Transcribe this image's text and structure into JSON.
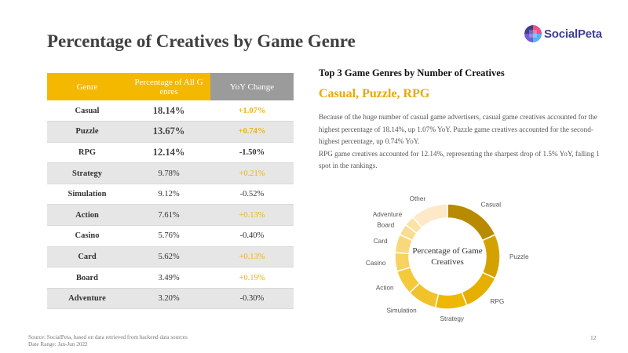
{
  "slide": {
    "title": "Percentage of Creatives by Game Genre",
    "page_number": "12"
  },
  "logo": {
    "text": "SocialPeta",
    "text_color": "#3d3f8f"
  },
  "table": {
    "headers": [
      "Genre",
      "Percentage of All G enres",
      "YoY Change"
    ],
    "header_colors": [
      "#f5b800",
      "#f5b800",
      "#9b9b9b"
    ],
    "rows": [
      {
        "genre": "Casual",
        "percent": "18.14%",
        "yoy": "+1.07%",
        "positive": true
      },
      {
        "genre": "Puzzle",
        "percent": "13.67%",
        "yoy": "+0.74%",
        "positive": true
      },
      {
        "genre": "RPG",
        "percent": "12.14%",
        "yoy": "-1.50%",
        "positive": false
      },
      {
        "genre": "Strategy",
        "percent": "9.78%",
        "yoy": "+0.21%",
        "positive": true
      },
      {
        "genre": "Simulation",
        "percent": "9.12%",
        "yoy": "-0.52%",
        "positive": false
      },
      {
        "genre": "Action",
        "percent": "7.61%",
        "yoy": "+0.13%",
        "positive": true
      },
      {
        "genre": "Casino",
        "percent": "5.76%",
        "yoy": "-0.40%",
        "positive": false
      },
      {
        "genre": "Card",
        "percent": "5.62%",
        "yoy": "+0.13%",
        "positive": true
      },
      {
        "genre": "Board",
        "percent": "3.49%",
        "yoy": "+0.19%",
        "positive": true
      },
      {
        "genre": "Adventure",
        "percent": "3.20%",
        "yoy": "-0.30%",
        "positive": false
      }
    ]
  },
  "panel": {
    "subtitle": "Top 3 Game Genres by Number of Creatives",
    "highlight": "Casual, Puzzle, RPG",
    "highlight_color": "#e8a800",
    "paragraphs": [
      "Because of the huge number of casual game advertisers, casual game creatives accounted for the highest percentage of 18.14%, up 1.07% YoY. Puzzle game creatives accounted for the second-highest percentage, up 0.74% YoY.",
      "RPG game creatives accounted for 12.14%, representing the sharpest drop of 1.5% YoY, falling 1 spot in the rankings."
    ]
  },
  "chart_data": {
    "type": "pie",
    "donut": true,
    "title": "Percentage of Game Creatives",
    "categories": [
      "Casual",
      "Puzzle",
      "RPG",
      "Strategy",
      "Simulation",
      "Action",
      "Casino",
      "Card",
      "Board",
      "Adventure",
      "Other"
    ],
    "values": [
      18.14,
      13.67,
      12.14,
      9.78,
      9.12,
      7.61,
      5.76,
      5.62,
      3.49,
      3.2,
      11.47
    ],
    "colors": [
      "#b88a00",
      "#d4a200",
      "#e6af00",
      "#eeb800",
      "#f2c22c",
      "#f5c93c",
      "#f7d261",
      "#f8d87a",
      "#fadd90",
      "#fbe3a4",
      "#fde9c8"
    ]
  },
  "footer": {
    "source": "Source: SocialPeta, based on data retrieved from backend data sources",
    "date_range": "Date Range: Jan-Jun 2022"
  }
}
